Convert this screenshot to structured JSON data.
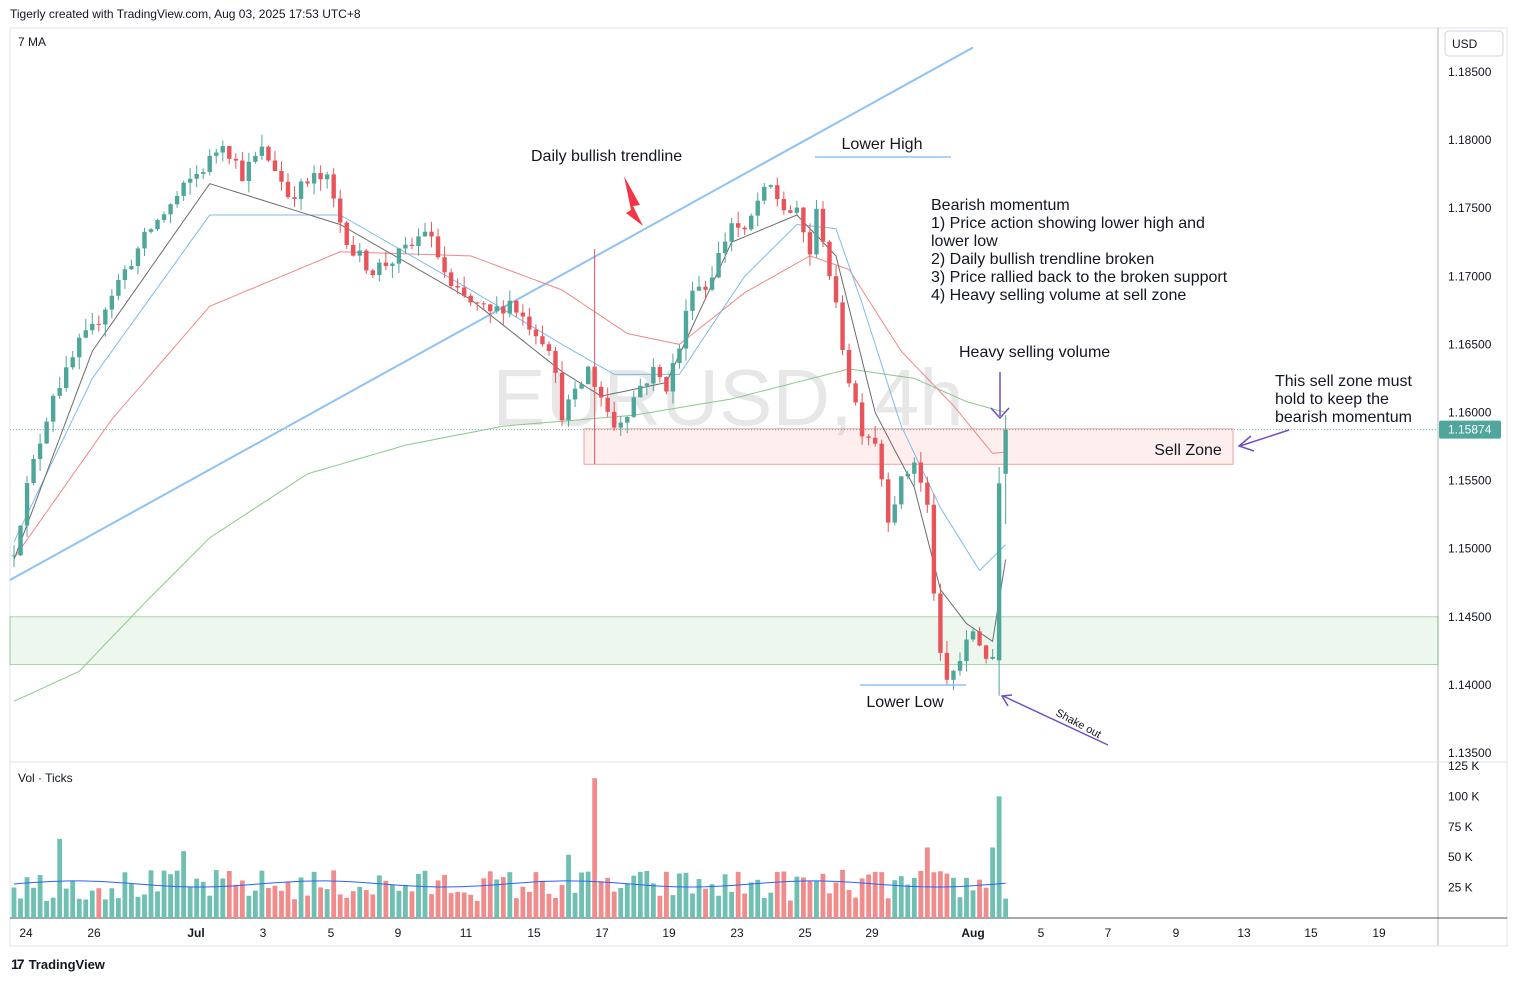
{
  "header": {
    "credit": "Tigerly created with TradingView.com, Aug 03, 2025 17:53 UTC+8",
    "indicator_label": "7 MA",
    "currency_button": "USD",
    "watermark": "EURUSD, 4h"
  },
  "footer": {
    "brand": "TradingView"
  },
  "colors": {
    "bull": "#4fa69a",
    "bear": "#e8545a",
    "ma_fast": "#6b6b6b",
    "ma_mid": "#7fbce8",
    "ma_slow": "#ef8888",
    "ma_long": "#8bc88b",
    "trendline": "#8ec2f3",
    "annotation_arrow": "#6f4fc4",
    "price_tag": "#4fa69a"
  },
  "annotations": {
    "trendline": "Daily bullish trendline",
    "lower_high": "Lower High",
    "lower_low": "Lower Low",
    "momentum_title": "Bearish momentum",
    "momentum_points": [
      "1) Price action showing lower high and",
      "lower low",
      "2) Daily bullish trendline broken",
      "3) Price rallied back to the broken support",
      "4) Heavy selling volume at sell zone"
    ],
    "heavy_volume": "Heavy selling volume",
    "sell_zone": "Sell Zone",
    "sell_zone_note": [
      "This sell zone must",
      "hold to keep the",
      "bearish momentum"
    ],
    "shake_out": "Shake out"
  },
  "volume_pane": {
    "label": "Vol · Ticks"
  },
  "chart_data": {
    "type": "candlestick",
    "symbol": "EURUSD",
    "timeframe": "4h",
    "ylim": [
      1.1335,
      1.1885
    ],
    "y_ticks": [
      "1.18500",
      "1.18000",
      "1.17500",
      "1.17000",
      "1.16500",
      "1.16000",
      "1.15500",
      "1.15000",
      "1.14500",
      "1.14000",
      "1.13500"
    ],
    "last_price": "1.15874",
    "x_ticks": [
      "24",
      "26",
      "Jul",
      "3",
      "5",
      "9",
      "11",
      "15",
      "17",
      "19",
      "23",
      "25",
      "29",
      "Aug",
      "5",
      "7",
      "9",
      "13",
      "15",
      "19"
    ],
    "sell_zone": [
      1.1562,
      1.1588
    ],
    "demand_zone": [
      1.1415,
      1.145
    ],
    "trendline_points": [
      [
        0,
        1.1477
      ],
      [
        147,
        1.1868
      ]
    ],
    "anchors": [
      [
        0,
        1.15
      ],
      [
        2,
        1.1545
      ],
      [
        4,
        1.158
      ],
      [
        6,
        1.1615
      ],
      [
        8,
        1.1628
      ],
      [
        10,
        1.165
      ],
      [
        12,
        1.166
      ],
      [
        15,
        1.1688
      ],
      [
        18,
        1.1712
      ],
      [
        21,
        1.1735
      ],
      [
        24,
        1.1752
      ],
      [
        27,
        1.177
      ],
      [
        30,
        1.1785
      ],
      [
        32,
        1.18
      ],
      [
        35,
        1.1775
      ],
      [
        38,
        1.1792
      ],
      [
        40,
        1.178
      ],
      [
        42,
        1.176
      ],
      [
        44,
        1.1765
      ],
      [
        46,
        1.1772
      ],
      [
        48,
        1.177
      ],
      [
        50,
        1.174
      ],
      [
        52,
        1.1718
      ],
      [
        55,
        1.1705
      ],
      [
        58,
        1.1712
      ],
      [
        61,
        1.1722
      ],
      [
        63,
        1.1735
      ],
      [
        65,
        1.1715
      ],
      [
        67,
        1.169
      ],
      [
        70,
        1.168
      ],
      [
        73,
        1.1672
      ],
      [
        76,
        1.1682
      ],
      [
        78,
        1.167
      ],
      [
        80,
        1.166
      ],
      [
        82,
        1.165
      ],
      [
        84,
        1.16
      ],
      [
        86,
        1.1612
      ],
      [
        88,
        1.1632
      ],
      [
        90,
        1.1612
      ],
      [
        92,
        1.159
      ],
      [
        94,
        1.1602
      ],
      [
        96,
        1.162
      ],
      [
        98,
        1.163
      ],
      [
        100,
        1.162
      ],
      [
        102,
        1.1648
      ],
      [
        104,
        1.1695
      ],
      [
        106,
        1.1692
      ],
      [
        108,
        1.1715
      ],
      [
        110,
        1.174
      ],
      [
        112,
        1.173
      ],
      [
        114,
        1.1755
      ],
      [
        116,
        1.1765
      ],
      [
        118,
        1.175
      ],
      [
        120,
        1.1745
      ],
      [
        122,
        1.1718
      ],
      [
        123,
        1.1745
      ],
      [
        124,
        1.173
      ],
      [
        126,
        1.1675
      ],
      [
        128,
        1.1625
      ],
      [
        130,
        1.1588
      ],
      [
        132,
        1.158
      ],
      [
        134,
        1.1525
      ],
      [
        136,
        1.1548
      ],
      [
        138,
        1.1565
      ],
      [
        140,
        1.153
      ],
      [
        141,
        1.147
      ],
      [
        142,
        1.1418
      ],
      [
        143,
        1.1402
      ],
      [
        145,
        1.1418
      ],
      [
        147,
        1.144
      ],
      [
        149,
        1.1422
      ],
      [
        150,
        1.1415
      ],
      [
        151,
        1.151
      ],
      [
        152,
        1.154
      ]
    ],
    "ma_fast": [
      [
        0,
        1.1492
      ],
      [
        12,
        1.1645
      ],
      [
        30,
        1.1768
      ],
      [
        50,
        1.1738
      ],
      [
        70,
        1.1683
      ],
      [
        84,
        1.163
      ],
      [
        90,
        1.1612
      ],
      [
        100,
        1.1622
      ],
      [
        110,
        1.1725
      ],
      [
        120,
        1.1745
      ],
      [
        126,
        1.1715
      ],
      [
        132,
        1.16
      ],
      [
        138,
        1.1545
      ],
      [
        142,
        1.147
      ],
      [
        146,
        1.1445
      ],
      [
        150,
        1.1432
      ],
      [
        152,
        1.1492
      ]
    ],
    "ma_mid": [
      [
        0,
        1.1505
      ],
      [
        12,
        1.1625
      ],
      [
        30,
        1.1745
      ],
      [
        50,
        1.1745
      ],
      [
        70,
        1.169
      ],
      [
        84,
        1.165
      ],
      [
        92,
        1.1628
      ],
      [
        102,
        1.1628
      ],
      [
        112,
        1.17
      ],
      [
        120,
        1.1738
      ],
      [
        126,
        1.1735
      ],
      [
        130,
        1.168
      ],
      [
        136,
        1.159
      ],
      [
        142,
        1.153
      ],
      [
        148,
        1.1484
      ],
      [
        152,
        1.1503
      ]
    ],
    "ma_slow": [
      [
        0,
        1.1493
      ],
      [
        15,
        1.1595
      ],
      [
        30,
        1.1678
      ],
      [
        50,
        1.1718
      ],
      [
        70,
        1.1715
      ],
      [
        84,
        1.169
      ],
      [
        94,
        1.1658
      ],
      [
        102,
        1.165
      ],
      [
        112,
        1.1688
      ],
      [
        122,
        1.1715
      ],
      [
        128,
        1.1705
      ],
      [
        136,
        1.1645
      ],
      [
        144,
        1.1605
      ],
      [
        150,
        1.157
      ],
      [
        152,
        1.1571
      ]
    ],
    "ma_long": [
      [
        0,
        1.1388
      ],
      [
        10,
        1.141
      ],
      [
        20,
        1.146
      ],
      [
        30,
        1.1508
      ],
      [
        45,
        1.1555
      ],
      [
        60,
        1.1576
      ],
      [
        75,
        1.159
      ],
      [
        95,
        1.1598
      ],
      [
        110,
        1.161
      ],
      [
        128,
        1.1632
      ],
      [
        138,
        1.1625
      ],
      [
        146,
        1.1608
      ],
      [
        152,
        1.16
      ]
    ],
    "volume": {
      "ylim": [
        0,
        125000
      ],
      "y_ticks": [
        "125 K",
        "100 K",
        "75 K",
        "50 K",
        "25 K"
      ],
      "spikes": [
        [
          89,
          115000
        ],
        [
          85,
          52000
        ],
        [
          140,
          58000
        ],
        [
          151,
          100000
        ],
        [
          150,
          58000
        ],
        [
          26,
          55000
        ],
        [
          7,
          65000
        ]
      ]
    }
  }
}
